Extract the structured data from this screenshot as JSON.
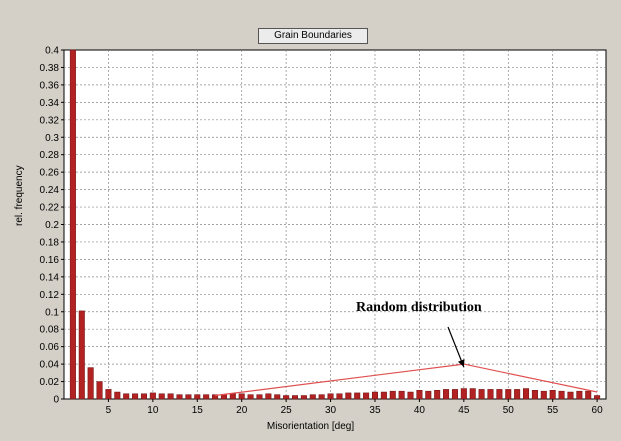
{
  "chart_data": {
    "type": "bar",
    "title": "Grain Boundaries",
    "xlabel": "Misorientation [deg]",
    "ylabel": "rel. frequency",
    "xlim": [
      0,
      61
    ],
    "ylim": [
      0,
      0.4
    ],
    "x_ticks": [
      5,
      10,
      15,
      20,
      25,
      30,
      35,
      40,
      45,
      50,
      55,
      60
    ],
    "y_ticks": [
      0,
      0.02,
      0.04,
      0.06,
      0.08,
      0.1,
      0.12,
      0.14,
      0.16,
      0.18,
      0.2,
      0.22,
      0.24,
      0.26,
      0.28,
      0.3,
      0.32,
      0.34,
      0.36,
      0.38,
      0.4
    ],
    "y_tick_labels": [
      "0",
      "0.02",
      "0.04",
      "0.06",
      "0.08",
      "0.1",
      "0.12",
      "0.14",
      "0.16",
      "0.18",
      "0.2",
      "0.22",
      "0.24",
      "0.26",
      "0.28",
      "0.3",
      "0.32",
      "0.34",
      "0.36",
      "0.38",
      "0.4"
    ],
    "grid": true,
    "bar_color": "#b22222",
    "series": [
      {
        "x": [
          1,
          2,
          3,
          4,
          5,
          6,
          7,
          8,
          9,
          10,
          11,
          12,
          13,
          14,
          15,
          16,
          17,
          18,
          19,
          20,
          21,
          22,
          23,
          24,
          25,
          26,
          27,
          28,
          29,
          30,
          31,
          32,
          33,
          34,
          35,
          36,
          37,
          38,
          39,
          40,
          41,
          42,
          43,
          44,
          45,
          46,
          47,
          48,
          49,
          50,
          51,
          52,
          53,
          54,
          55,
          56,
          57,
          58,
          59,
          60
        ],
        "values": [
          0.4,
          0.101,
          0.036,
          0.02,
          0.011,
          0.008,
          0.006,
          0.006,
          0.006,
          0.007,
          0.006,
          0.006,
          0.005,
          0.005,
          0.005,
          0.005,
          0.005,
          0.005,
          0.006,
          0.006,
          0.005,
          0.005,
          0.006,
          0.005,
          0.004,
          0.004,
          0.004,
          0.005,
          0.005,
          0.006,
          0.006,
          0.007,
          0.007,
          0.007,
          0.008,
          0.008,
          0.009,
          0.009,
          0.008,
          0.01,
          0.009,
          0.01,
          0.011,
          0.011,
          0.012,
          0.012,
          0.011,
          0.011,
          0.011,
          0.011,
          0.011,
          0.012,
          0.01,
          0.009,
          0.01,
          0.009,
          0.008,
          0.009,
          0.009,
          0.004
        ]
      }
    ],
    "random_curve": {
      "x": [
        17,
        45,
        60
      ],
      "y": [
        0.004,
        0.04,
        0.008
      ],
      "color": "#e05050"
    },
    "annotation": {
      "text": "Random distribution",
      "arrow_to_x": 45,
      "arrow_to_y": 0.039
    }
  }
}
